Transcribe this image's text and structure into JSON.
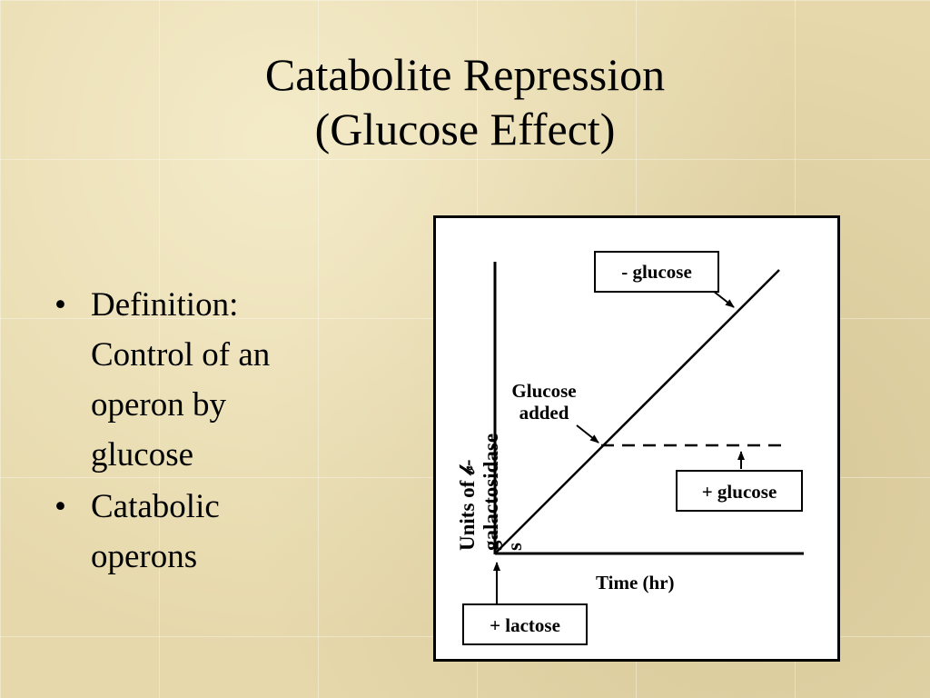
{
  "slide": {
    "title_line1": "Catabolite Repression",
    "title_line2": "(Glucose Effect)",
    "bullets": [
      {
        "bullet": "•",
        "text": "Definition: Control of an operon by glucose"
      },
      {
        "bullet": "•",
        "text": "Catabolic operons"
      }
    ]
  },
  "figure": {
    "y_axis_label_line1": "Units of 𝒷-",
    "y_axis_label_line2": "galactosidase",
    "y_axis_label_line3": "s",
    "x_axis_label": "Time (hr)",
    "glucose_added_line1": "Glucose",
    "glucose_added_line2": "added",
    "minus_glucose": "- glucose",
    "plus_glucose": "+ glucose",
    "plus_lactose": "+ lactose"
  },
  "colors": {
    "background": "#e6d8ab",
    "ink": "#000000",
    "panel": "#ffffff"
  }
}
